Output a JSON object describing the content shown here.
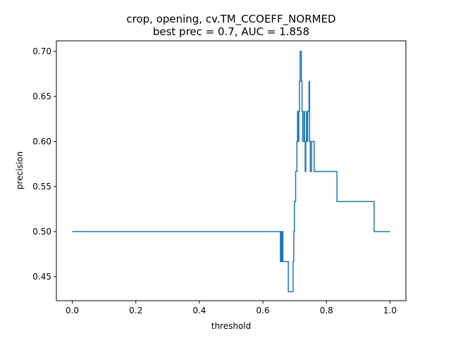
{
  "chart_data": {
    "type": "line",
    "title": "crop, opening, cv.TM_CCOEFF_NORMED",
    "subtitle": "best prec = 0.7, AUC = 1.858",
    "xlabel": "threshold",
    "ylabel": "precision",
    "xlim": [
      -0.05,
      1.05
    ],
    "ylim": [
      0.4233,
      0.7117
    ],
    "xticks": [
      0.0,
      0.2,
      0.4,
      0.6,
      0.8,
      1.0
    ],
    "xtick_labels": [
      "0.0",
      "0.2",
      "0.4",
      "0.6",
      "0.8",
      "1.0"
    ],
    "yticks": [
      0.45,
      0.5,
      0.55,
      0.6,
      0.65,
      0.7
    ],
    "ytick_labels": [
      "0.45",
      "0.50",
      "0.55",
      "0.60",
      "0.65",
      "0.70"
    ],
    "grid": false,
    "line_color": "#1f77b4",
    "series": [
      {
        "step": "post",
        "x": [
          0.0,
          0.655,
          0.657,
          0.659,
          0.661,
          0.663,
          0.665,
          0.68,
          0.695,
          0.697,
          0.699,
          0.701,
          0.703,
          0.705,
          0.707,
          0.709,
          0.711,
          0.713,
          0.715,
          0.717,
          0.719,
          0.721,
          0.723,
          0.725,
          0.727,
          0.729,
          0.731,
          0.733,
          0.735,
          0.737,
          0.739,
          0.741,
          0.743,
          0.745,
          0.747,
          0.749,
          0.751,
          0.753,
          0.755,
          0.757,
          0.759,
          0.761,
          0.763,
          0.765,
          0.767,
          0.769,
          0.771,
          0.773,
          0.775,
          0.833,
          0.95,
          1.0
        ],
        "y": [
          0.5,
          0.4667,
          0.5,
          0.4667,
          0.5,
          0.4667,
          0.4667,
          0.4333,
          0.4667,
          0.5,
          0.5333,
          0.5333,
          0.5667,
          0.5667,
          0.6,
          0.6333,
          0.6,
          0.6333,
          0.6667,
          0.7,
          0.7,
          0.6667,
          0.6333,
          0.6,
          0.6,
          0.6333,
          0.6,
          0.5667,
          0.6,
          0.6333,
          0.6,
          0.6333,
          0.6333,
          0.6667,
          0.6,
          0.5667,
          0.5667,
          0.6,
          0.6,
          0.6,
          0.6,
          0.5667,
          0.5667,
          0.5667,
          0.5667,
          0.5667,
          0.5667,
          0.5667,
          0.5667,
          0.5333,
          0.5,
          0.5
        ]
      }
    ]
  }
}
